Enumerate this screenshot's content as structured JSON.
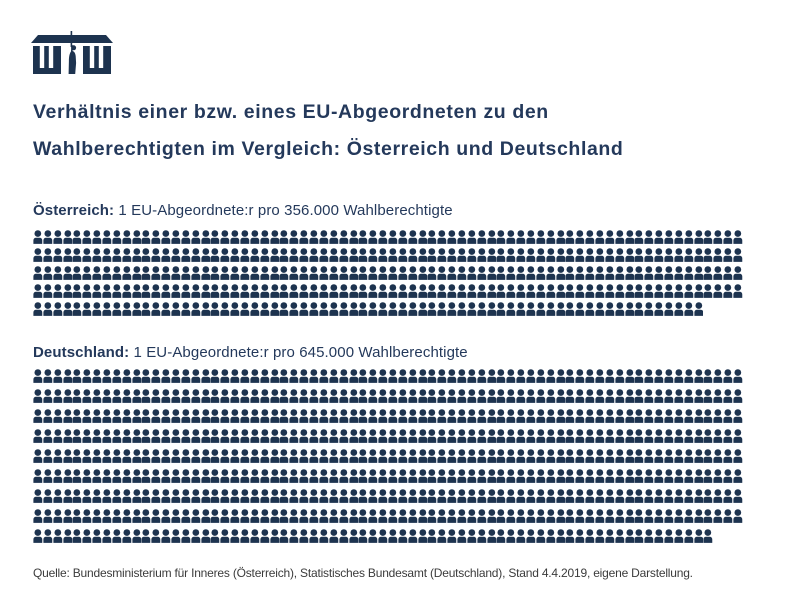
{
  "colors": {
    "title_navy": "#24395b",
    "icon_navy": "#1d334f",
    "source_gray": "#3b3b3b"
  },
  "logo": {
    "name": "parliament-building-with-statue"
  },
  "title": {
    "line1": "Verhältnis einer bzw. eines EU-Abgeordneten zu den",
    "line2": "Wahlberechtigten im Vergleich: Österreich und Deutschland"
  },
  "source": {
    "text": "Quelle: Bundesministerium für Inneres (Österreich), Statistisches Bundesamt (Deutschland), Stand 4.4.2019, eigene Darstellung."
  },
  "chart_data": {
    "type": "pictogram",
    "icon": "person-icon",
    "unit_per_icon": 1000,
    "icons_per_full_row": 72,
    "series": [
      {
        "name": "Österreich",
        "label_bold": "Österreich:",
        "label_rest": " 1 EU-Abgeordnete:r pro 356.000 Wahlberechtigte",
        "wahlberechtigte_pro_abgeordnete": 356000,
        "icons_total": 356,
        "rows": [
          72,
          72,
          72,
          72,
          68
        ]
      },
      {
        "name": "Deutschland",
        "label_bold": "Deutschland:",
        "label_rest": " 1 EU-Abgeordnete:r pro 645.000 Wahlberechtigte",
        "wahlberechtigte_pro_abgeordnete": 645000,
        "icons_total": 645,
        "rows": [
          72,
          72,
          72,
          72,
          72,
          72,
          72,
          72,
          69
        ]
      }
    ]
  }
}
